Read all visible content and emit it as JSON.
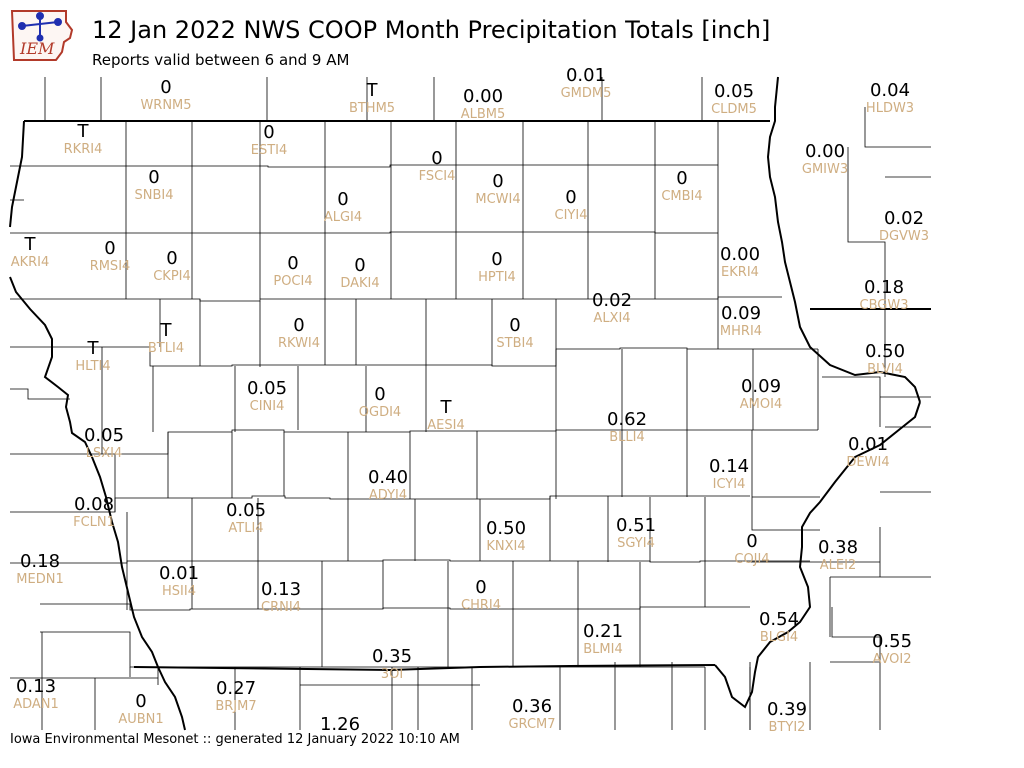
{
  "header": {
    "title": "12 Jan 2022 NWS COOP Month Precipitation Totals [inch]",
    "subtitle": "Reports valid between 6 and 9 AM",
    "logo_text": "IEM"
  },
  "footer": {
    "text": "Iowa Environmental Mesonet :: generated 12 January 2022 10:10 AM"
  },
  "colors": {
    "value": "#000000",
    "station_id": "#cfae82",
    "lines": "#000000",
    "background": "#ffffff"
  },
  "stations": [
    {
      "id": "WRNM5",
      "value": "0"
    },
    {
      "id": "BTHM5",
      "value": "T"
    },
    {
      "id": "ALBM5",
      "value": "0.00"
    },
    {
      "id": "GMDM5",
      "value": "0.01"
    },
    {
      "id": "CLDM5",
      "value": "0.05"
    },
    {
      "id": "HLDW3",
      "value": "0.04"
    },
    {
      "id": "RKRI4",
      "value": "T"
    },
    {
      "id": "ESTI4",
      "value": "0"
    },
    {
      "id": "FSCI4",
      "value": "0"
    },
    {
      "id": "SNBI4",
      "value": "0"
    },
    {
      "id": "MCWI4",
      "value": "0"
    },
    {
      "id": "CIYI4",
      "value": "0"
    },
    {
      "id": "CMBI4",
      "value": "0"
    },
    {
      "id": "GMIW3",
      "value": "0.00"
    },
    {
      "id": "ALGI4",
      "value": "0"
    },
    {
      "id": "DGVW3",
      "value": "0.02"
    },
    {
      "id": "AKRI4",
      "value": "T"
    },
    {
      "id": "RMSI4",
      "value": "0"
    },
    {
      "id": "CKPI4",
      "value": "0"
    },
    {
      "id": "POCI4",
      "value": "0"
    },
    {
      "id": "DAKI4",
      "value": "0"
    },
    {
      "id": "HPTI4",
      "value": "0"
    },
    {
      "id": "EKRI4",
      "value": "0.00"
    },
    {
      "id": "ALXI4",
      "value": "0.02"
    },
    {
      "id": "CBGW3",
      "value": "0.18"
    },
    {
      "id": "RKWI4",
      "value": "0"
    },
    {
      "id": "STBI4",
      "value": "0"
    },
    {
      "id": "MHRI4",
      "value": "0.09"
    },
    {
      "id": "BTLI4",
      "value": "T"
    },
    {
      "id": "HLTI4",
      "value": "T"
    },
    {
      "id": "BLVI4",
      "value": "0.50"
    },
    {
      "id": "CINI4",
      "value": "0.05"
    },
    {
      "id": "OGDI4",
      "value": "0"
    },
    {
      "id": "AMOI4",
      "value": "0.09"
    },
    {
      "id": "AESI4",
      "value": "T"
    },
    {
      "id": "BLLI4",
      "value": "0.62"
    },
    {
      "id": "LSXI4",
      "value": "0.05"
    },
    {
      "id": "DEWI4",
      "value": "0.01"
    },
    {
      "id": "ICYI4",
      "value": "0.14"
    },
    {
      "id": "ADYI4",
      "value": "0.40"
    },
    {
      "id": "FCLN1",
      "value": "0.08"
    },
    {
      "id": "ATLI4",
      "value": "0.05"
    },
    {
      "id": "KNXI4",
      "value": "0.50"
    },
    {
      "id": "SGYI4",
      "value": "0.51"
    },
    {
      "id": "COJI4",
      "value": "0"
    },
    {
      "id": "ALEI2",
      "value": "0.38"
    },
    {
      "id": "MEDN1",
      "value": "0.18"
    },
    {
      "id": "HSII4",
      "value": "0.01"
    },
    {
      "id": "CRNI4",
      "value": "0.13"
    },
    {
      "id": "CHRI4",
      "value": "0"
    },
    {
      "id": "BLGI4",
      "value": "0.54"
    },
    {
      "id": "BLMI4",
      "value": "0.21"
    },
    {
      "id": "AVOI2",
      "value": "0.55"
    },
    {
      "id": "3OI",
      "value": "0.35"
    },
    {
      "id": "ADAN1",
      "value": "0.13"
    },
    {
      "id": "AUBN1",
      "value": "0"
    },
    {
      "id": "BRJM7",
      "value": "0.27"
    },
    {
      "id": "GRCM7",
      "value": "0.36"
    },
    {
      "id": "BTYI2",
      "value": "0.39"
    },
    {
      "id": "",
      "value": "1.26"
    }
  ]
}
